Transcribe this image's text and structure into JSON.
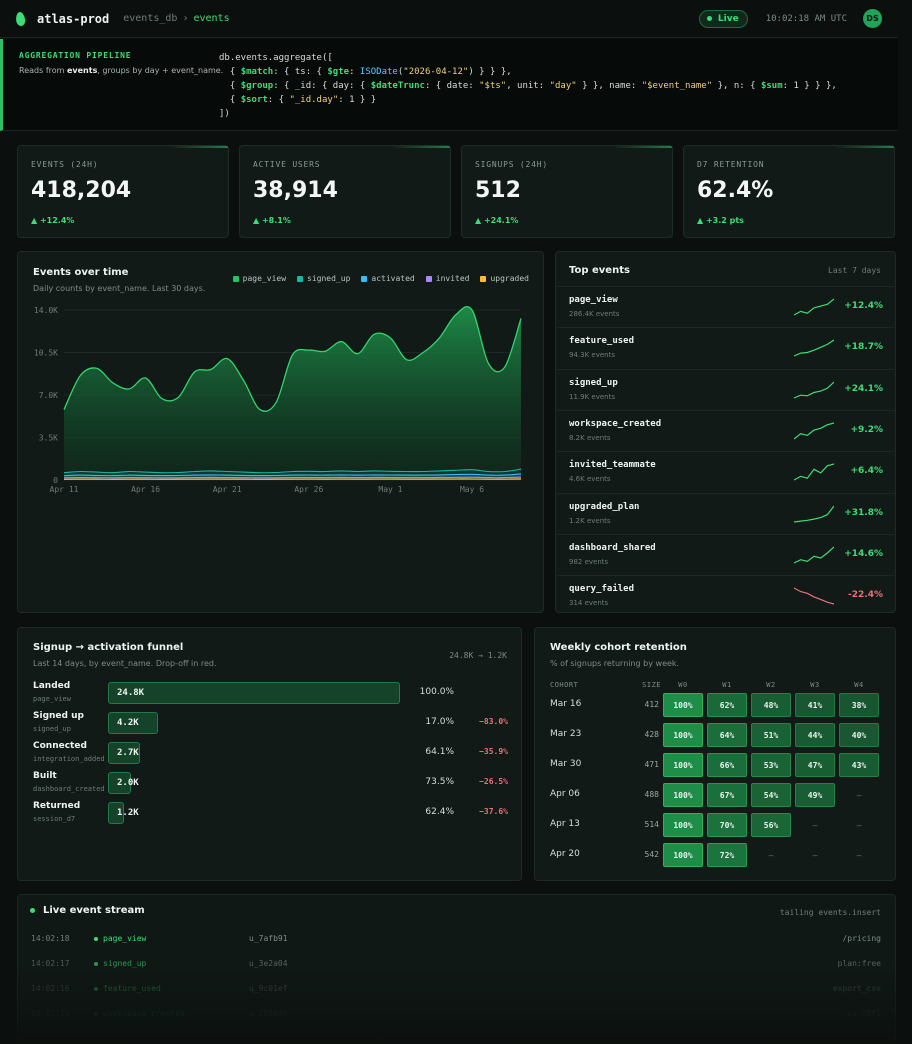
{
  "header": {
    "app_name": "atlas-prod",
    "db": "events_db",
    "collection": "events",
    "live_label": "Live",
    "clock": "10:02:18 AM UTC",
    "avatar_initials": "DS"
  },
  "pipeline": {
    "label": "AGGREGATION PIPELINE",
    "desc_prefix": "Reads from ",
    "desc_collection": "events",
    "desc_suffix": ", groups by day + event_name."
  },
  "kpis": [
    {
      "label": "EVENTS (24H)",
      "value": "418,204",
      "delta": "▲ +12.4%"
    },
    {
      "label": "ACTIVE USERS",
      "value": "38,914",
      "delta": "▲ +8.1%"
    },
    {
      "label": "SIGNUPS (24H)",
      "value": "512",
      "delta": "▲ +24.1%"
    },
    {
      "label": "D7 RETENTION",
      "value": "62.4%",
      "delta": "▲ +3.2 pts"
    }
  ],
  "events_chart": {
    "title": "Events over time",
    "subtitle": "Daily counts by event_name. Last 30 days.",
    "colors": {
      "page_view": "#22c55e",
      "signed_up": "#14b8a6",
      "activated": "#38bdf8",
      "invited": "#a78bfa",
      "upgraded": "#fbbf24"
    }
  },
  "chart_data": {
    "type": "area",
    "ylim": [
      0,
      14000
    ],
    "y_ticks": [
      "0",
      "3.5K",
      "7.0K",
      "10.5K",
      "14.0K"
    ],
    "x_ticks": [
      "Apr 11",
      "Apr 16",
      "Apr 21",
      "Apr 26",
      "May 1",
      "May 6"
    ],
    "x": [
      "Apr 11",
      "Apr 12",
      "Apr 13",
      "Apr 14",
      "Apr 15",
      "Apr 16",
      "Apr 17",
      "Apr 18",
      "Apr 19",
      "Apr 20",
      "Apr 21",
      "Apr 22",
      "Apr 23",
      "Apr 24",
      "Apr 25",
      "Apr 26",
      "Apr 27",
      "Apr 28",
      "Apr 29",
      "Apr 30",
      "May 1",
      "May 2",
      "May 3",
      "May 4",
      "May 5",
      "May 6",
      "May 7",
      "May 8",
      "May 9"
    ],
    "series": [
      {
        "name": "page_view",
        "values": [
          5800,
          8600,
          9200,
          8000,
          7500,
          8400,
          6700,
          6800,
          8900,
          9100,
          10000,
          8200,
          5800,
          6400,
          10300,
          10700,
          10600,
          11400,
          10400,
          12000,
          11700,
          9900,
          10500,
          11700,
          13600,
          14000,
          9600,
          9300,
          13300
        ]
      },
      {
        "name": "signed_up",
        "values": [
          600,
          700,
          650,
          600,
          700,
          650,
          600,
          620,
          700,
          750,
          700,
          650,
          600,
          620,
          700,
          720,
          700,
          750,
          700,
          750,
          720,
          700,
          700,
          750,
          800,
          850,
          700,
          700,
          900
        ]
      },
      {
        "name": "activated",
        "values": [
          350,
          400,
          380,
          360,
          400,
          380,
          360,
          370,
          400,
          420,
          400,
          380,
          360,
          370,
          400,
          410,
          400,
          420,
          400,
          420,
          410,
          400,
          400,
          420,
          450,
          470,
          400,
          400,
          500
        ]
      },
      {
        "name": "invited",
        "values": [
          180,
          200,
          190,
          180,
          200,
          190,
          180,
          185,
          200,
          210,
          200,
          190,
          180,
          185,
          200,
          205,
          200,
          210,
          200,
          210,
          205,
          200,
          200,
          210,
          220,
          230,
          200,
          200,
          240
        ]
      },
      {
        "name": "upgraded",
        "values": [
          60,
          70,
          65,
          60,
          70,
          65,
          60,
          62,
          70,
          75,
          70,
          65,
          60,
          62,
          70,
          72,
          70,
          75,
          70,
          75,
          72,
          70,
          70,
          75,
          80,
          85,
          70,
          70,
          90
        ]
      }
    ]
  },
  "top_events": {
    "title": "Top events",
    "period": "Last 7 days",
    "items": [
      {
        "name": "page_view",
        "count": "286.4K events",
        "delta": "+12.4%",
        "trend": [
          3,
          4,
          3.5,
          5,
          5.5,
          6,
          7.5
        ],
        "up": true
      },
      {
        "name": "feature_used",
        "count": "94.3K events",
        "delta": "+18.7%",
        "trend": [
          2,
          3,
          3.2,
          4,
          5,
          6,
          7.5
        ],
        "up": true
      },
      {
        "name": "signed_up",
        "count": "11.9K events",
        "delta": "+24.1%",
        "trend": [
          2,
          3,
          2.8,
          4,
          4.5,
          5.5,
          7.8
        ],
        "up": true
      },
      {
        "name": "workspace_created",
        "count": "8.2K events",
        "delta": "+9.2%",
        "trend": [
          2,
          3.5,
          3,
          4.5,
          5,
          6,
          6.5
        ],
        "up": true
      },
      {
        "name": "invited_teammate",
        "count": "4.6K events",
        "delta": "+6.4%",
        "trend": [
          2,
          3,
          2.5,
          5,
          4,
          6,
          6.5
        ],
        "up": true
      },
      {
        "name": "upgraded_plan",
        "count": "1.2K events",
        "delta": "+31.8%",
        "trend": [
          2,
          2.3,
          2.6,
          3,
          3.5,
          4.5,
          7.5
        ],
        "up": true
      },
      {
        "name": "dashboard_shared",
        "count": "982 events",
        "delta": "+14.6%",
        "trend": [
          2,
          3,
          2.5,
          4,
          3.5,
          5,
          6.8
        ],
        "up": true
      },
      {
        "name": "query_failed",
        "count": "314 events",
        "delta": "-22.4%",
        "trend": [
          7,
          6,
          5.5,
          4.5,
          3.8,
          3,
          2.5
        ],
        "up": false
      }
    ]
  },
  "funnel": {
    "title": "Signup → activation funnel",
    "subtitle": "Last 14 days, by event_name. Drop-off in red.",
    "summary": "24.8K → 1.2K",
    "steps": [
      {
        "name": "Landed",
        "event": "page_view",
        "value": "24.8K",
        "pct": "100.0%",
        "drop": "",
        "fraction": 1.0
      },
      {
        "name": "Signed up",
        "event": "signed_up",
        "value": "4.2K",
        "pct": "17.0%",
        "drop": "−83.0%",
        "fraction": 0.17
      },
      {
        "name": "Connected",
        "event": "integration_added",
        "value": "2.7K",
        "pct": "64.1%",
        "drop": "−35.9%",
        "fraction": 0.109
      },
      {
        "name": "Built",
        "event": "dashboard_created",
        "value": "2.0K",
        "pct": "73.5%",
        "drop": "−26.5%",
        "fraction": 0.08
      },
      {
        "name": "Returned",
        "event": "session_d7",
        "value": "1.2K",
        "pct": "62.4%",
        "drop": "−37.6%",
        "fraction": 0.05
      }
    ]
  },
  "cohort": {
    "title": "Weekly cohort retention",
    "subtitle": "% of signups returning by week.",
    "col_cohort": "COHORT",
    "col_size": "SIZE",
    "weeks": [
      "W0",
      "W1",
      "W2",
      "W3",
      "W4"
    ],
    "empty": "—",
    "rows": [
      {
        "label": "Mar 16",
        "size": "412",
        "values": [
          100,
          62,
          48,
          41,
          38
        ]
      },
      {
        "label": "Mar 23",
        "size": "428",
        "values": [
          100,
          64,
          51,
          44,
          40
        ]
      },
      {
        "label": "Mar 30",
        "size": "471",
        "values": [
          100,
          66,
          53,
          47,
          43
        ]
      },
      {
        "label": "Apr 06",
        "size": "488",
        "values": [
          100,
          67,
          54,
          49,
          null
        ]
      },
      {
        "label": "Apr 13",
        "size": "514",
        "values": [
          100,
          70,
          56,
          null,
          null
        ]
      },
      {
        "label": "Apr 20",
        "size": "542",
        "values": [
          100,
          72,
          null,
          null,
          null
        ]
      }
    ]
  },
  "stream": {
    "title": "Live event stream",
    "hint": "tailing events.insert",
    "rows": [
      {
        "time": "14:02:18",
        "event": "page_view",
        "user": "u_7afb91",
        "path": "/pricing"
      },
      {
        "time": "14:02:17",
        "event": "signed_up",
        "user": "u_3e2a04",
        "path": "plan:free"
      },
      {
        "time": "14:02:16",
        "event": "feature_used",
        "user": "u_9c01ef",
        "path": "export_csv"
      },
      {
        "time": "14:02:15",
        "event": "workspace_created",
        "user": "u_2b8806",
        "path": "ws_88f1"
      }
    ]
  }
}
